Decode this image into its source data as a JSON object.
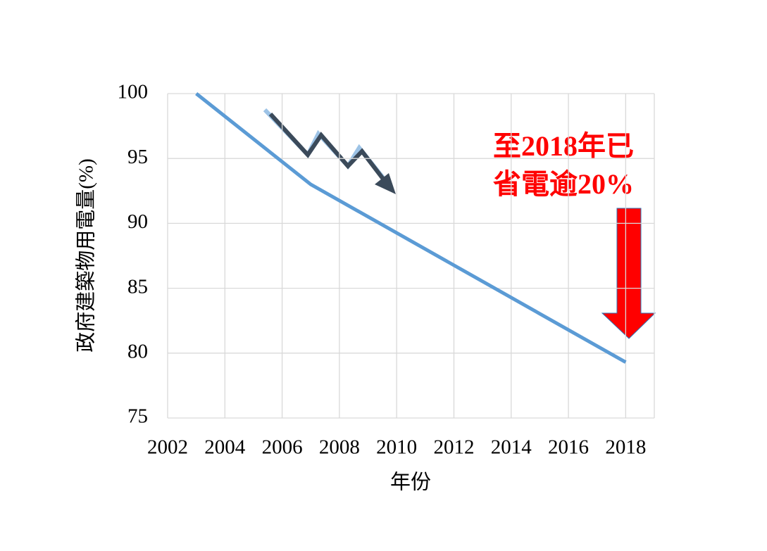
{
  "chart_data": {
    "type": "line",
    "y_label": "政府建築物用電量(%)",
    "x_label": "年份",
    "x": [
      2003,
      2007,
      2018
    ],
    "series": [
      {
        "color": "#5b9bd5",
        "values": [
          100,
          93,
          79.3
        ]
      }
    ],
    "xlim": [
      2002,
      2019
    ],
    "xticks": [
      2002,
      2004,
      2006,
      2008,
      2010,
      2012,
      2014,
      2016,
      2018
    ],
    "ylim": [
      75,
      100
    ],
    "yticks": [
      75,
      80,
      85,
      90,
      95,
      100
    ],
    "grid": true,
    "annotations": [
      "至2018年已",
      "省電逾20%"
    ]
  }
}
